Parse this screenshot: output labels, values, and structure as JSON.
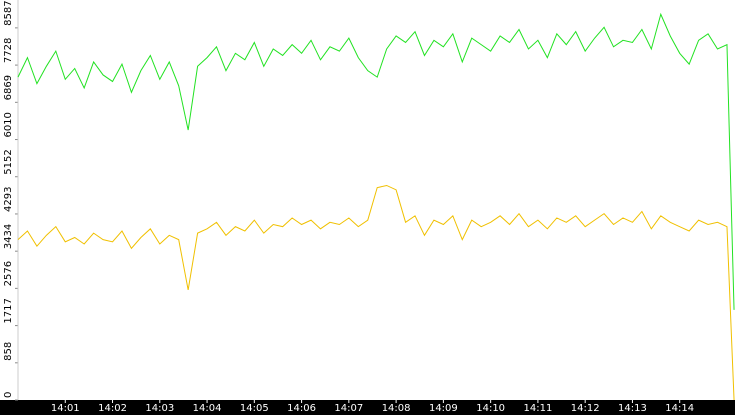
{
  "chart_data": {
    "type": "line",
    "x": [
      840.0,
      840.2,
      840.4,
      840.6,
      840.8,
      841.0,
      841.2,
      841.4,
      841.6,
      841.8,
      842.0,
      842.2,
      842.4,
      842.6,
      842.8,
      843.0,
      843.2,
      843.4,
      843.6,
      843.8,
      844.0,
      844.2,
      844.4,
      844.6,
      844.8,
      845.0,
      845.2,
      845.4,
      845.6,
      845.8,
      846.0,
      846.2,
      846.4,
      846.6,
      846.8,
      847.0,
      847.2,
      847.4,
      847.6,
      847.8,
      848.0,
      848.2,
      848.4,
      848.6,
      848.8,
      849.0,
      849.2,
      849.4,
      849.6,
      849.8,
      850.0,
      850.2,
      850.4,
      850.6,
      850.8,
      851.0,
      851.2,
      851.4,
      851.6,
      851.8,
      852.0,
      852.2,
      852.4,
      852.6,
      852.8,
      853.0,
      853.2,
      853.4,
      853.6,
      853.8,
      854.0,
      854.2,
      854.4,
      854.6,
      854.8,
      855.0,
      855.15
    ],
    "series": [
      {
        "color": "#22e222",
        "values": [
          7450,
          7900,
          7300,
          7700,
          8050,
          7400,
          7650,
          7200,
          7800,
          7500,
          7350,
          7750,
          7100,
          7600,
          7950,
          7400,
          7800,
          7250,
          6230,
          7700,
          7900,
          8150,
          7600,
          8000,
          7850,
          8250,
          7700,
          8100,
          7950,
          8200,
          8000,
          8300,
          7850,
          8150,
          8050,
          8350,
          7900,
          7600,
          7450,
          8100,
          8400,
          8250,
          8500,
          7950,
          8300,
          8150,
          8450,
          7800,
          8350,
          8200,
          8050,
          8400,
          8250,
          8550,
          8100,
          8300,
          7900,
          8450,
          8200,
          8500,
          8050,
          8350,
          8600,
          8150,
          8300,
          8250,
          8550,
          8100,
          8900,
          8400,
          8000,
          7750,
          8300,
          8450,
          8100,
          8200,
          2080
        ]
      },
      {
        "color": "#f0c000",
        "values": [
          3700,
          3900,
          3550,
          3800,
          4000,
          3650,
          3750,
          3600,
          3850,
          3700,
          3650,
          3900,
          3500,
          3750,
          3950,
          3600,
          3800,
          3700,
          2540,
          3850,
          3950,
          4100,
          3800,
          4000,
          3900,
          4150,
          3850,
          4050,
          4000,
          4200,
          4050,
          4150,
          3950,
          4100,
          4050,
          4200,
          4000,
          4150,
          4900,
          4950,
          4850,
          4100,
          4250,
          3800,
          4150,
          4050,
          4250,
          3700,
          4150,
          4000,
          4100,
          4250,
          4050,
          4300,
          4000,
          4150,
          3950,
          4200,
          4100,
          4250,
          4000,
          4150,
          4300,
          4050,
          4200,
          4100,
          4350,
          3950,
          4250,
          4100,
          4000,
          3900,
          4150,
          4050,
          4100,
          4000,
          0
        ]
      }
    ],
    "xlim": [
      840,
      855.17
    ],
    "xticks": [
      {
        "value": 841,
        "label": "14:01"
      },
      {
        "value": 842,
        "label": "14:02"
      },
      {
        "value": 843,
        "label": "14:03"
      },
      {
        "value": 844,
        "label": "14:04"
      },
      {
        "value": 845,
        "label": "14:05"
      },
      {
        "value": 846,
        "label": "14:06"
      },
      {
        "value": 847,
        "label": "14:07"
      },
      {
        "value": 848,
        "label": "14:08"
      },
      {
        "value": 849,
        "label": "14:09"
      },
      {
        "value": 850,
        "label": "14:10"
      },
      {
        "value": 851,
        "label": "14:11"
      },
      {
        "value": 852,
        "label": "14:12"
      },
      {
        "value": 853,
        "label": "14:13"
      },
      {
        "value": 854,
        "label": "14:14"
      }
    ],
    "ylim": [
      0,
      9230
    ],
    "yticks": [
      0,
      858,
      1717,
      2576,
      3434,
      4293,
      5152,
      6010,
      6869,
      7728,
      8587
    ]
  }
}
